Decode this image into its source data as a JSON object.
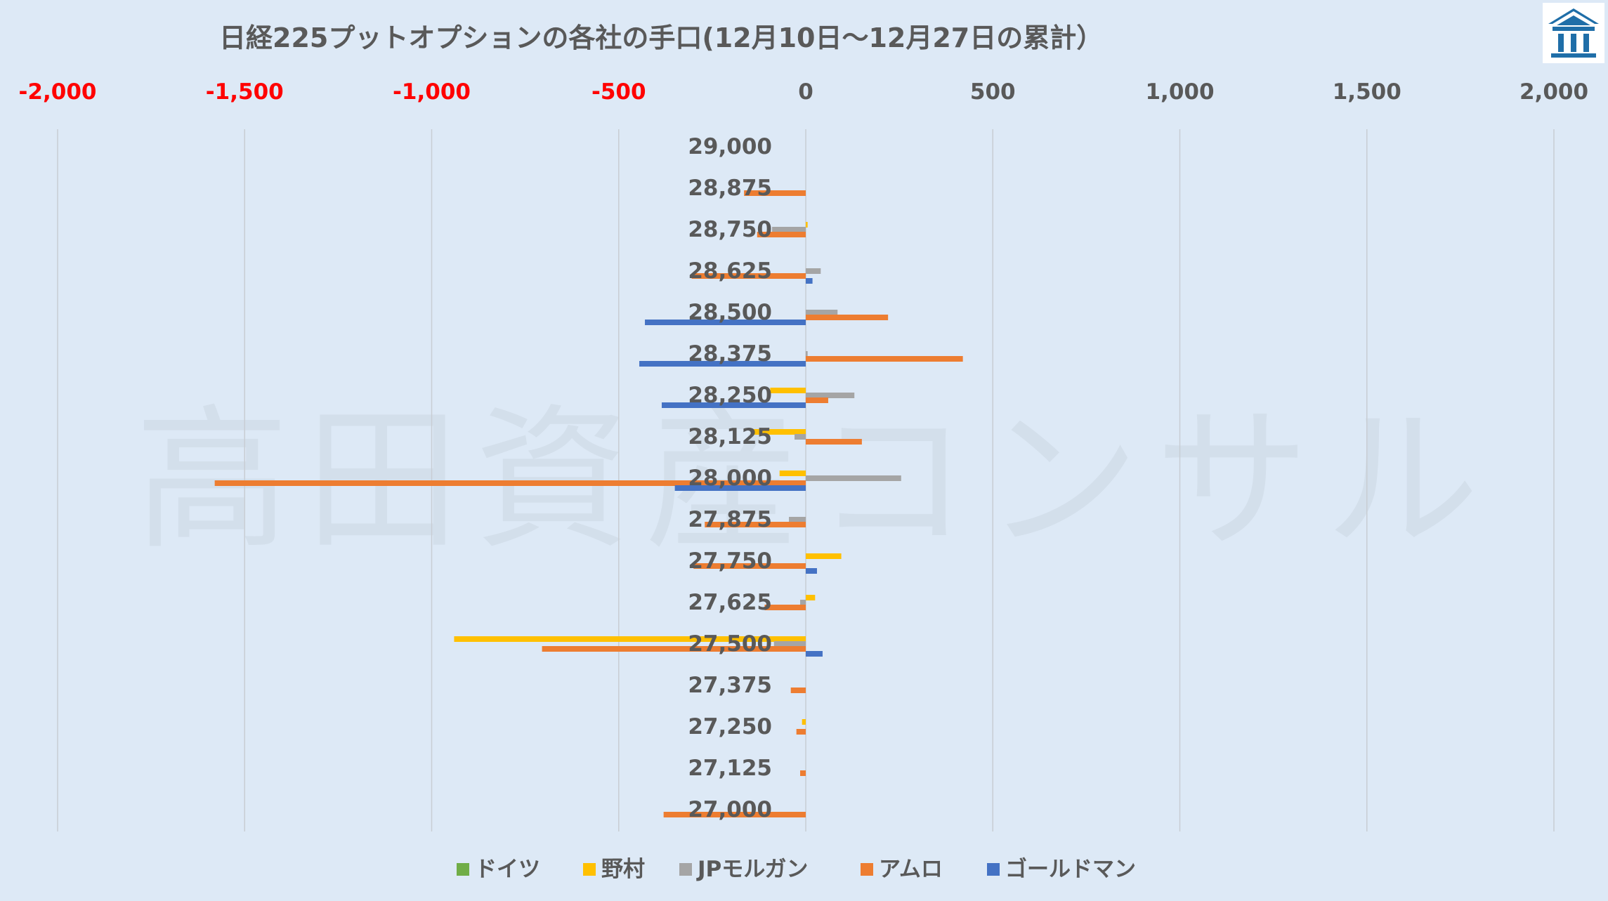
{
  "chart_data": {
    "type": "bar",
    "orientation": "horizontal",
    "title": "日経225プットオプションの各社の手口(12月10日～12月27日の累計）",
    "xlim": [
      -2000,
      2000
    ],
    "xticks": [
      "-2,000",
      "-1,500",
      "-1,000",
      "-500",
      "0",
      "500",
      "1,000",
      "1,500",
      "2,000"
    ],
    "xtick_values": [
      -2000,
      -1500,
      -1000,
      -500,
      0,
      500,
      1000,
      1500,
      2000
    ],
    "negative_tick_color": "#ff0000",
    "positive_tick_color": "#595959",
    "grid": true,
    "legend_position": "bottom",
    "categories": [
      "29,000",
      "28,875",
      "28,750",
      "28,625",
      "28,500",
      "28,375",
      "28,250",
      "28,125",
      "28,000",
      "27,875",
      "27,750",
      "27,625",
      "27,500",
      "27,375",
      "27,250",
      "27,125",
      "27,000"
    ],
    "series": [
      {
        "name": "ドイツ",
        "color": "#70ad47",
        "values": [
          0,
          0,
          0,
          0,
          0,
          0,
          0,
          0,
          0,
          0,
          0,
          0,
          0,
          0,
          0,
          0,
          0
        ]
      },
      {
        "name": "野村",
        "color": "#ffc000",
        "values": [
          0,
          0,
          5,
          0,
          0,
          0,
          -95,
          -140,
          -70,
          0,
          95,
          25,
          -940,
          0,
          -10,
          0,
          0
        ]
      },
      {
        "name": "JPモルガン",
        "color": "#a5a5a5",
        "values": [
          0,
          0,
          -90,
          40,
          85,
          5,
          130,
          -30,
          255,
          -45,
          0,
          -15,
          -85,
          0,
          0,
          0,
          0
        ]
      },
      {
        "name": "アムロ",
        "color": "#ed7d31",
        "values": [
          0,
          -165,
          -130,
          -305,
          220,
          420,
          60,
          150,
          -1580,
          -270,
          -300,
          -110,
          -705,
          -40,
          -25,
          -15,
          -380
        ]
      },
      {
        "name": "ゴールドマン",
        "color": "#4472c4",
        "values": [
          0,
          0,
          0,
          18,
          -430,
          -445,
          -385,
          0,
          -350,
          0,
          30,
          0,
          45,
          0,
          0,
          0,
          0
        ]
      }
    ]
  },
  "watermark": "高田資産コンサル",
  "logo": {
    "name": "building-logo-icon",
    "color": "#1f6ea8"
  }
}
